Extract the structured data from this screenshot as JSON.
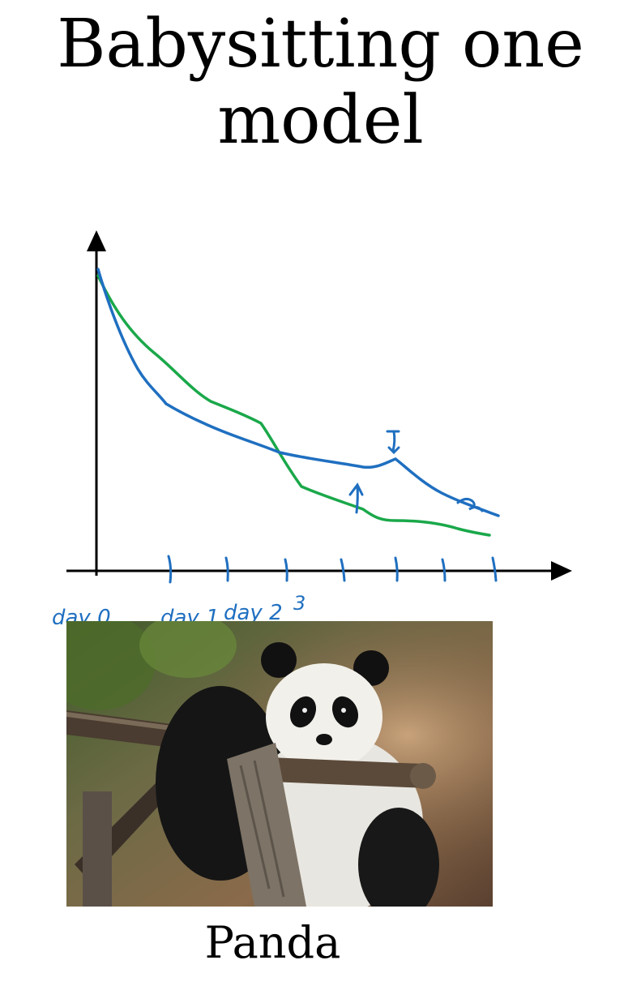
{
  "slide": {
    "title_line1": "Babysitting one",
    "title_line2": "model",
    "caption": "Panda"
  },
  "sketch": {
    "x_labels": [
      "day 0",
      "day 1",
      "day 2",
      "3"
    ],
    "colors": {
      "axis": "#000000",
      "blue_curve": "#1f6fc0",
      "green_curve": "#1aa84a"
    }
  },
  "photo": {
    "subject": "giant panda resting on a wooden log"
  }
}
